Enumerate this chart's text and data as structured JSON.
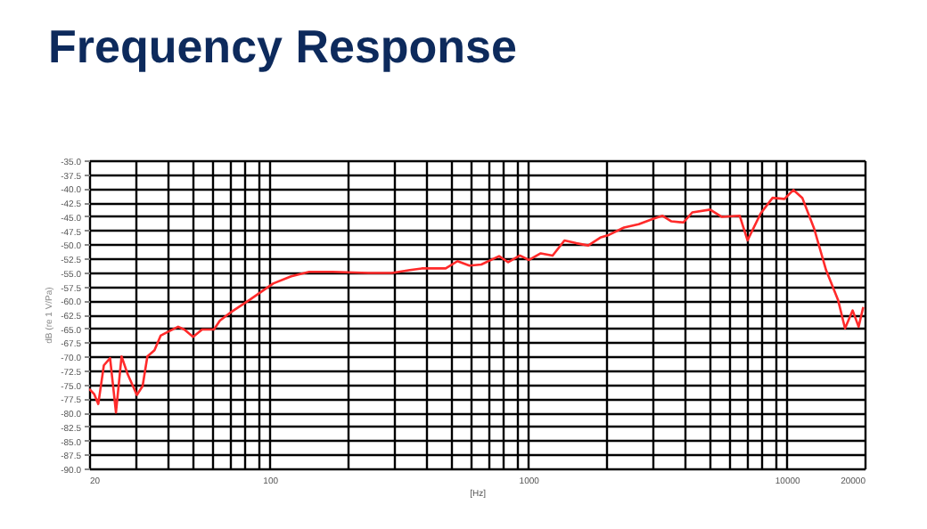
{
  "chart_data": {
    "type": "line",
    "title": "Frequency Response",
    "xlabel": "[Hz]",
    "ylabel": "dB (re 1 V/Pa)",
    "log": "x",
    "grid": true,
    "marker": "none",
    "line_style": "solid",
    "xlim": [
      20,
      20000
    ],
    "ylim": [
      -90,
      -35
    ],
    "xticks": [
      20,
      {
        "value": 30,
        "label": null
      },
      {
        "value": 40,
        "label": null
      },
      {
        "value": 50,
        "label": null
      },
      {
        "value": 60,
        "label": null
      },
      {
        "value": 70,
        "label": null
      },
      {
        "value": 80,
        "label": null
      },
      {
        "value": 90,
        "label": null
      },
      100,
      {
        "value": 200,
        "label": null
      },
      {
        "value": 300,
        "label": null
      },
      {
        "value": 400,
        "label": null
      },
      {
        "value": 500,
        "label": null
      },
      {
        "value": 600,
        "label": null
      },
      {
        "value": 700,
        "label": null
      },
      {
        "value": 800,
        "label": null
      },
      {
        "value": 900,
        "label": null
      },
      1000,
      {
        "value": 2000,
        "label": null
      },
      {
        "value": 3000,
        "label": null
      },
      {
        "value": 4000,
        "label": null
      },
      {
        "value": 5000,
        "label": null
      },
      {
        "value": 6000,
        "label": null
      },
      {
        "value": 7000,
        "label": null
      },
      {
        "value": 8000,
        "label": null
      },
      {
        "value": 9000,
        "label": null
      },
      10000,
      20000
    ],
    "yticks": [
      {
        "value": -90,
        "label": "-90.0"
      },
      {
        "value": -87.5,
        "label": "-87.5"
      },
      {
        "value": -85,
        "label": "-85.0"
      },
      {
        "value": -82.5,
        "label": "-82.5"
      },
      {
        "value": -80,
        "label": "-80.0"
      },
      {
        "value": -77.5,
        "label": "-77.5"
      },
      {
        "value": -75,
        "label": "-75.0"
      },
      {
        "value": -72.5,
        "label": "-72.5"
      },
      {
        "value": -70,
        "label": "-70.0"
      },
      {
        "value": -67.5,
        "label": "-67.5"
      },
      {
        "value": -65,
        "label": "-65.0"
      },
      {
        "value": -62.5,
        "label": "-62.5"
      },
      {
        "value": -60,
        "label": "-60.0"
      },
      {
        "value": -57.5,
        "label": "-57.5"
      },
      {
        "value": -55,
        "label": "-55.0"
      },
      {
        "value": -52.5,
        "label": "-52.5"
      },
      {
        "value": -50,
        "label": "-50.0"
      },
      {
        "value": -47.5,
        "label": "-47.5"
      },
      {
        "value": -45,
        "label": "-45.0"
      },
      {
        "value": -42.5,
        "label": "-42.5"
      },
      {
        "value": -40,
        "label": "-40.0"
      },
      {
        "value": -37.5,
        "label": "-37.5"
      },
      {
        "value": -35,
        "label": "-35.0"
      }
    ],
    "series": [
      {
        "color": "#ff2a2a",
        "x": [
          20,
          20.9,
          21.7,
          22.8,
          24.1,
          25.4,
          26.7,
          28.2,
          30.6,
          32.2,
          33.6,
          35.8,
          37.8,
          40.8,
          44.2,
          46.7,
          50.5,
          54.7,
          60.8,
          64.1,
          71.3,
          83.6,
          103,
          121,
          142,
          175,
          241,
          297,
          348,
          387,
          479,
          532,
          592,
          658,
          771,
          836,
          928,
          1006,
          1117,
          1242,
          1380,
          1534,
          1706,
          1898,
          2054,
          2345,
          2675,
          3054,
          3306,
          3580,
          3980,
          4308,
          5050,
          5612,
          6576,
          7048,
          7920,
          8812,
          9796,
          10600,
          11480,
          12760,
          14190,
          15780,
          16800,
          17980,
          18960,
          19760
        ],
        "values": [
          -75.8,
          -76.7,
          -78.5,
          -71.6,
          -70.3,
          -80.0,
          -70.0,
          -73.2,
          -76.9,
          -75.3,
          -70.0,
          -68.9,
          -66.3,
          -65.5,
          -64.7,
          -65.2,
          -66.5,
          -65.2,
          -65.2,
          -63.6,
          -62.0,
          -59.9,
          -57.0,
          -55.7,
          -54.9,
          -54.9,
          -55.1,
          -55.1,
          -54.6,
          -54.3,
          -54.3,
          -53.0,
          -53.8,
          -53.6,
          -52.1,
          -53.2,
          -52.0,
          -52.8,
          -51.6,
          -52.0,
          -49.3,
          -49.8,
          -50.2,
          -48.8,
          -48.3,
          -47.0,
          -46.4,
          -45.4,
          -44.9,
          -45.9,
          -46.1,
          -44.3,
          -43.8,
          -45.1,
          -44.9,
          -49.3,
          -44.5,
          -41.7,
          -41.9,
          -40.3,
          -41.7,
          -47.2,
          -54.6,
          -59.9,
          -65.0,
          -61.8,
          -64.7,
          -61.2
        ]
      }
    ]
  }
}
